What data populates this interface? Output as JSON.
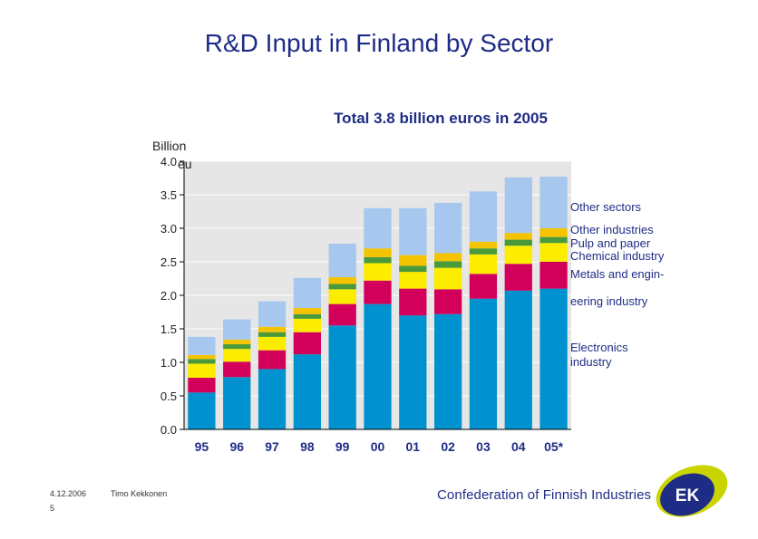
{
  "title": "R&D Input in Finland by Sector",
  "footer": {
    "date": "4.12.2006",
    "author": "Timo Kekkonen",
    "page": "5",
    "organization": "Confederation of Finnish Industries",
    "logo_text": "EK"
  },
  "colors": {
    "title": "#1f2c86",
    "plot_bg": "#e6e6e6"
  },
  "chart_data": {
    "type": "bar",
    "stacked": true,
    "title": "Total 3.8 billion euros in 2005",
    "ylabel": "Billion euros",
    "ylim": [
      0,
      4.0
    ],
    "yticks": [
      "0.0",
      "0.5",
      "1.0",
      "1.5",
      "2.0",
      "2.5",
      "3.0",
      "3.5",
      "4.0"
    ],
    "categories": [
      "95",
      "96",
      "97",
      "98",
      "99",
      "00",
      "01",
      "02",
      "03",
      "04",
      "05*"
    ],
    "series": [
      {
        "name": "Electronics industry",
        "color": "#0092cf",
        "values": [
          0.55,
          0.78,
          0.9,
          1.12,
          1.55,
          1.87,
          1.7,
          1.72,
          1.95,
          2.07,
          2.1
        ]
      },
      {
        "name": "Metals and engineering industry",
        "color": "#d2005a",
        "values": [
          0.22,
          0.23,
          0.28,
          0.33,
          0.32,
          0.35,
          0.4,
          0.37,
          0.37,
          0.4,
          0.4
        ]
      },
      {
        "name": "Chemical industry",
        "color": "#fcec00",
        "values": [
          0.21,
          0.19,
          0.2,
          0.2,
          0.22,
          0.26,
          0.25,
          0.32,
          0.29,
          0.27,
          0.28
        ]
      },
      {
        "name": "Pulp and paper",
        "color": "#4a9a3a",
        "values": [
          0.07,
          0.07,
          0.07,
          0.07,
          0.08,
          0.09,
          0.09,
          0.1,
          0.09,
          0.09,
          0.09
        ]
      },
      {
        "name": "Other industries",
        "color": "#f5c400",
        "values": [
          0.06,
          0.07,
          0.08,
          0.09,
          0.1,
          0.13,
          0.16,
          0.12,
          0.1,
          0.1,
          0.13
        ]
      },
      {
        "name": "Other sectors",
        "color": "#a6c8ef",
        "values": [
          0.27,
          0.3,
          0.38,
          0.45,
          0.5,
          0.6,
          0.7,
          0.75,
          0.75,
          0.83,
          0.77
        ]
      }
    ],
    "legend_labels": [
      "Other sectors",
      "Other industries",
      "Pulp and paper",
      "Chemical industry",
      "Metals and engin-",
      "eering industry",
      "Electronics",
      "industry"
    ],
    "legend": "right"
  }
}
